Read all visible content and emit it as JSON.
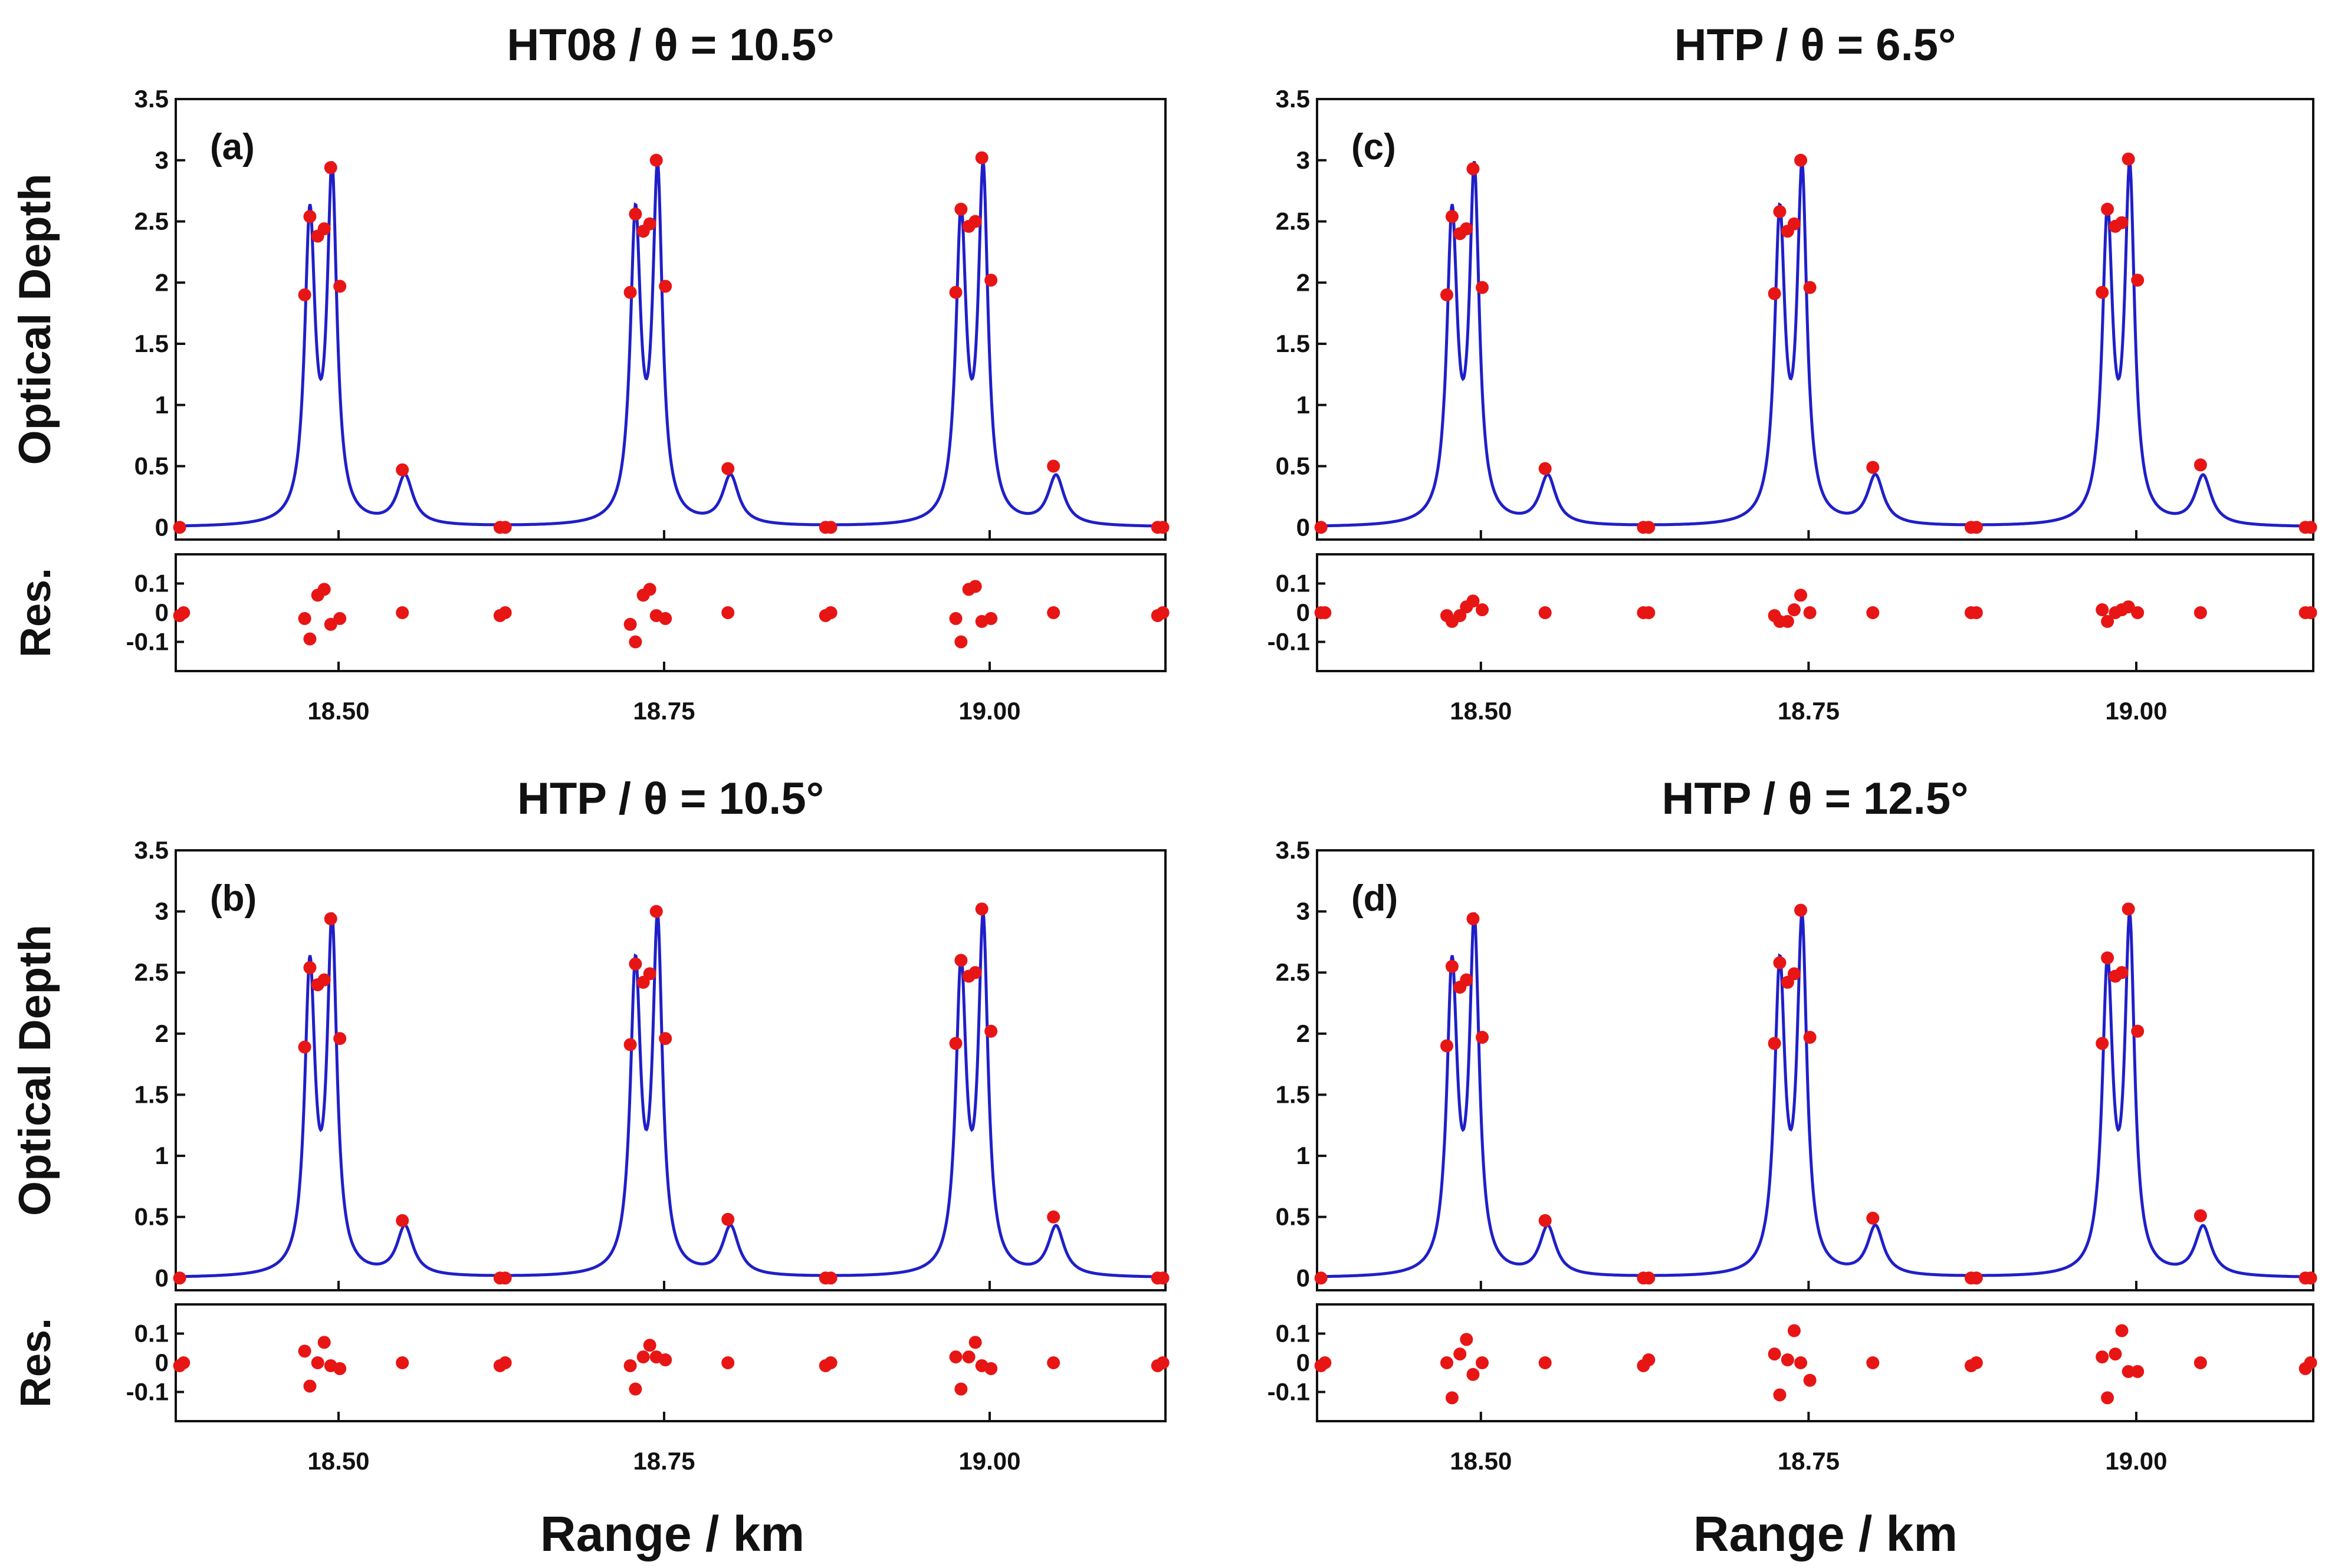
{
  "figure": {
    "xlabel": "Range / km",
    "ylabel": "Optical Depth",
    "res_label": "Res."
  },
  "colors": {
    "curve": "#1f1fc8",
    "points": "#e81515",
    "axes": "#111111"
  },
  "chart_data": [
    {
      "type": "line",
      "label": "(a)",
      "title": "HT08 / θ = 10.5°",
      "xlabel": "Range / km",
      "ylabel": "Optical Depth",
      "xlim": [
        18.375,
        19.135
      ],
      "ylim": [
        -0.1,
        3.5
      ],
      "xticks": [
        "18.50",
        "18.75",
        "19.00"
      ],
      "yticks": [
        "0",
        "0.5",
        "1",
        "1.5",
        "2",
        "2.5",
        "3",
        "3.5"
      ],
      "data_points": {
        "x": [
          18.378,
          18.474,
          18.478,
          18.484,
          18.489,
          18.494,
          18.501,
          18.549,
          18.624,
          18.628,
          18.724,
          18.728,
          18.734,
          18.739,
          18.744,
          18.751,
          18.799,
          18.874,
          18.878,
          18.974,
          18.978,
          18.984,
          18.989,
          18.994,
          19.001,
          19.049,
          19.129,
          19.133
        ],
        "y": [
          0.0,
          1.9,
          2.54,
          2.38,
          2.44,
          2.94,
          1.97,
          0.47,
          0.0,
          0.0,
          1.92,
          2.56,
          2.42,
          2.48,
          3.0,
          1.97,
          0.48,
          0.0,
          0.0,
          1.92,
          2.6,
          2.46,
          2.5,
          3.02,
          2.02,
          0.5,
          0.0,
          0.0
        ]
      },
      "residuals": {
        "ylim": [
          -0.2,
          0.2
        ],
        "yticks": [
          "0.1",
          "0",
          "-0.1"
        ],
        "x": [
          18.378,
          18.381,
          18.474,
          18.478,
          18.484,
          18.489,
          18.494,
          18.501,
          18.549,
          18.624,
          18.628,
          18.724,
          18.728,
          18.734,
          18.739,
          18.744,
          18.751,
          18.799,
          18.874,
          18.878,
          18.974,
          18.978,
          18.984,
          18.989,
          18.994,
          19.001,
          19.049,
          19.129,
          19.133
        ],
        "y": [
          -0.01,
          0.0,
          -0.02,
          -0.09,
          0.06,
          0.08,
          -0.04,
          -0.02,
          0.0,
          -0.01,
          0.0,
          -0.04,
          -0.1,
          0.06,
          0.08,
          -0.01,
          -0.02,
          0.0,
          -0.01,
          0.0,
          -0.02,
          -0.1,
          0.08,
          0.09,
          -0.03,
          -0.02,
          0.0,
          -0.01,
          0.0
        ]
      }
    },
    {
      "type": "line",
      "label": "(b)",
      "title": "HTP / θ = 10.5°",
      "xlabel": "Range / km",
      "ylabel": "Optical Depth",
      "xlim": [
        18.375,
        19.135
      ],
      "ylim": [
        -0.1,
        3.5
      ],
      "xticks": [
        "18.50",
        "18.75",
        "19.00"
      ],
      "yticks": [
        "0",
        "0.5",
        "1",
        "1.5",
        "2",
        "2.5",
        "3",
        "3.5"
      ],
      "data_points": {
        "x": [
          18.378,
          18.474,
          18.478,
          18.484,
          18.489,
          18.494,
          18.501,
          18.549,
          18.624,
          18.628,
          18.724,
          18.728,
          18.734,
          18.739,
          18.744,
          18.751,
          18.799,
          18.874,
          18.878,
          18.974,
          18.978,
          18.984,
          18.989,
          18.994,
          19.001,
          19.049,
          19.129,
          19.133
        ],
        "y": [
          0.0,
          1.89,
          2.54,
          2.4,
          2.44,
          2.94,
          1.96,
          0.47,
          0.0,
          0.0,
          1.91,
          2.57,
          2.42,
          2.49,
          3.0,
          1.96,
          0.48,
          0.0,
          0.0,
          1.92,
          2.6,
          2.47,
          2.5,
          3.02,
          2.02,
          0.5,
          0.0,
          0.0
        ]
      },
      "residuals": {
        "ylim": [
          -0.2,
          0.2
        ],
        "yticks": [
          "0.1",
          "0",
          "-0.1"
        ],
        "x": [
          18.378,
          18.381,
          18.474,
          18.478,
          18.484,
          18.489,
          18.494,
          18.501,
          18.549,
          18.624,
          18.628,
          18.724,
          18.728,
          18.734,
          18.739,
          18.744,
          18.751,
          18.799,
          18.874,
          18.878,
          18.974,
          18.978,
          18.984,
          18.989,
          18.994,
          19.001,
          19.049,
          19.129,
          19.133
        ],
        "y": [
          -0.01,
          0.0,
          0.04,
          -0.08,
          0.0,
          0.07,
          -0.01,
          -0.02,
          0.0,
          -0.01,
          0.0,
          -0.01,
          -0.09,
          0.02,
          0.06,
          0.02,
          0.01,
          0.0,
          -0.01,
          0.0,
          0.02,
          -0.09,
          0.02,
          0.07,
          -0.01,
          -0.02,
          0.0,
          -0.01,
          0.0
        ]
      }
    },
    {
      "type": "line",
      "label": "(c)",
      "title": "HTP / θ = 6.5°",
      "xlabel": "Range / km",
      "ylabel": "Optical Depth",
      "xlim": [
        18.375,
        19.135
      ],
      "ylim": [
        -0.1,
        3.5
      ],
      "xticks": [
        "18.50",
        "18.75",
        "19.00"
      ],
      "yticks": [
        "0",
        "0.5",
        "1",
        "1.5",
        "2",
        "2.5",
        "3",
        "3.5"
      ],
      "data_points": {
        "x": [
          18.378,
          18.474,
          18.478,
          18.484,
          18.489,
          18.494,
          18.501,
          18.549,
          18.624,
          18.628,
          18.724,
          18.728,
          18.734,
          18.739,
          18.744,
          18.751,
          18.799,
          18.874,
          18.878,
          18.974,
          18.978,
          18.984,
          18.989,
          18.994,
          19.001,
          19.049,
          19.129,
          19.133
        ],
        "y": [
          0.0,
          1.9,
          2.54,
          2.4,
          2.44,
          2.93,
          1.96,
          0.48,
          0.0,
          0.0,
          1.91,
          2.58,
          2.42,
          2.48,
          3.0,
          1.96,
          0.49,
          0.0,
          0.0,
          1.92,
          2.6,
          2.46,
          2.49,
          3.01,
          2.02,
          0.51,
          0.0,
          0.0
        ]
      },
      "residuals": {
        "ylim": [
          -0.2,
          0.2
        ],
        "yticks": [
          "0.1",
          "0",
          "-0.1"
        ],
        "x": [
          18.378,
          18.381,
          18.474,
          18.478,
          18.484,
          18.489,
          18.494,
          18.501,
          18.549,
          18.624,
          18.628,
          18.724,
          18.728,
          18.734,
          18.739,
          18.744,
          18.751,
          18.799,
          18.874,
          18.878,
          18.974,
          18.978,
          18.984,
          18.989,
          18.994,
          19.001,
          19.049,
          19.129,
          19.133
        ],
        "y": [
          0.0,
          0.0,
          -0.01,
          -0.03,
          -0.01,
          0.02,
          0.04,
          0.01,
          0.0,
          0.0,
          0.0,
          -0.01,
          -0.03,
          -0.03,
          0.01,
          0.06,
          0.0,
          0.0,
          0.0,
          0.0,
          0.01,
          -0.03,
          0.0,
          0.01,
          0.02,
          0.0,
          0.0,
          0.0,
          0.0
        ]
      }
    },
    {
      "type": "line",
      "label": "(d)",
      "title": "HTP / θ = 12.5°",
      "xlabel": "Range / km",
      "ylabel": "Optical Depth",
      "xlim": [
        18.375,
        19.135
      ],
      "ylim": [
        -0.1,
        3.5
      ],
      "xticks": [
        "18.50",
        "18.75",
        "19.00"
      ],
      "yticks": [
        "0",
        "0.5",
        "1",
        "1.5",
        "2",
        "2.5",
        "3",
        "3.5"
      ],
      "data_points": {
        "x": [
          18.378,
          18.474,
          18.478,
          18.484,
          18.489,
          18.494,
          18.501,
          18.549,
          18.624,
          18.628,
          18.724,
          18.728,
          18.734,
          18.739,
          18.744,
          18.751,
          18.799,
          18.874,
          18.878,
          18.974,
          18.978,
          18.984,
          18.989,
          18.994,
          19.001,
          19.049,
          19.129,
          19.133
        ],
        "y": [
          0.0,
          1.9,
          2.55,
          2.38,
          2.44,
          2.94,
          1.97,
          0.47,
          0.0,
          0.0,
          1.92,
          2.58,
          2.42,
          2.49,
          3.01,
          1.97,
          0.49,
          0.0,
          0.0,
          1.92,
          2.62,
          2.47,
          2.5,
          3.02,
          2.02,
          0.51,
          0.0,
          0.0
        ]
      },
      "residuals": {
        "ylim": [
          -0.2,
          0.2
        ],
        "yticks": [
          "0.1",
          "0",
          "-0.1"
        ],
        "x": [
          18.378,
          18.381,
          18.474,
          18.478,
          18.484,
          18.489,
          18.494,
          18.501,
          18.549,
          18.624,
          18.628,
          18.724,
          18.728,
          18.734,
          18.739,
          18.744,
          18.751,
          18.799,
          18.874,
          18.878,
          18.974,
          18.978,
          18.984,
          18.989,
          18.994,
          19.001,
          19.049,
          19.129,
          19.133
        ],
        "y": [
          -0.01,
          0.0,
          0.0,
          -0.12,
          0.03,
          0.08,
          -0.04,
          0.0,
          0.0,
          -0.01,
          0.01,
          0.03,
          -0.11,
          0.01,
          0.11,
          0.0,
          -0.06,
          0.0,
          -0.01,
          0.0,
          0.02,
          -0.12,
          0.03,
          0.11,
          -0.03,
          -0.03,
          0.0,
          -0.02,
          0.0
        ]
      }
    }
  ]
}
